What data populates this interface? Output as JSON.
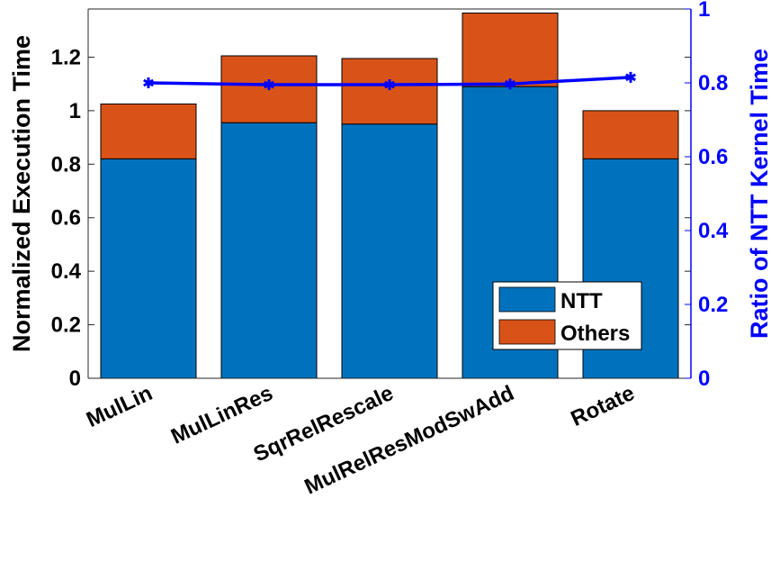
{
  "chart_data": {
    "type": "bar",
    "stacked": true,
    "categories": [
      "MulLin",
      "MulLinRes",
      "SqrRelRescale",
      "MulRelResModSwAdd",
      "Rotate"
    ],
    "series": [
      {
        "name": "NTT",
        "values": [
          0.82,
          0.955,
          0.95,
          1.09,
          0.82
        ],
        "color": "#0072BD"
      },
      {
        "name": "Others",
        "values": [
          0.205,
          0.25,
          0.245,
          0.275,
          0.18
        ],
        "color": "#D95319"
      }
    ],
    "line_series": {
      "axis": "right",
      "values": [
        0.8,
        0.795,
        0.795,
        0.797,
        0.815
      ],
      "color": "#0000FF",
      "marker": "asterisk"
    },
    "ylabel": "Normalized Execution Time",
    "ylim": [
      0,
      1.38
    ],
    "yticks": [
      "0",
      "0.2",
      "0.4",
      "0.6",
      "0.8",
      "1",
      "1.2"
    ],
    "y2label": "Ratio of NTT Kernel Time",
    "y2lim": [
      0,
      1
    ],
    "y2ticks": [
      "0",
      "0.2",
      "0.4",
      "0.6",
      "0.8",
      "1"
    ],
    "y2color": "#0000FF",
    "legend": {
      "position": "lower-right",
      "entries": [
        "NTT",
        "Others"
      ]
    },
    "grid": false
  }
}
